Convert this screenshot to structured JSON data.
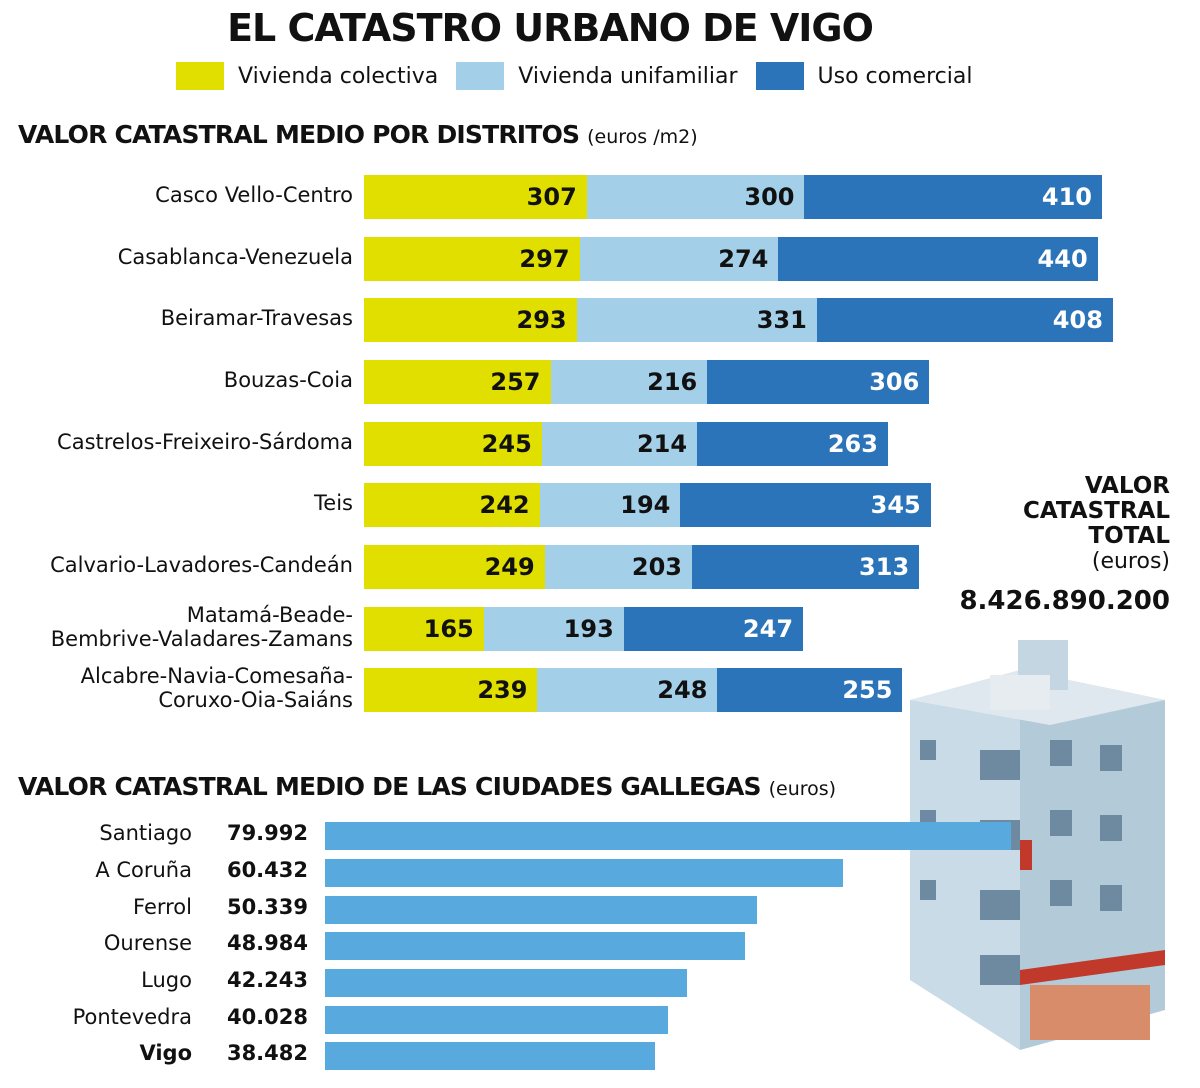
{
  "title": "EL CATASTRO URBANO DE VIGO",
  "colors": {
    "colectiva": "#e0df00",
    "unifamiliar": "#a4cfe8",
    "comercial": "#2b74ba",
    "cities": "#58aade"
  },
  "chart_data": [
    {
      "type": "bar",
      "orientation": "horizontal",
      "stacked": true,
      "title": "VALOR CATASTRAL MEDIO POR DISTRITOS",
      "unit": "(euros /m2)",
      "legend": "top",
      "categories": [
        "Casco Vello-Centro",
        "Casablanca-Venezuela",
        "Beiramar-Travesas",
        "Bouzas-Coia",
        "Castrelos-Freixeiro-Sárdoma",
        "Teis",
        "Calvario-Lavadores-Candeán",
        "Matamá-Beade-\nBembrive-Valadares-Zamans",
        "Alcabre-Navia-Comesaña-\nCoruxo-Oia-Saiáns"
      ],
      "series": [
        {
          "name": "Vivienda colectiva",
          "values": [
            307,
            297,
            293,
            257,
            245,
            242,
            249,
            165,
            239
          ]
        },
        {
          "name": "Vivienda unifamiliar",
          "values": [
            300,
            274,
            331,
            216,
            214,
            194,
            203,
            193,
            248
          ]
        },
        {
          "name": "Uso comercial",
          "values": [
            410,
            440,
            408,
            306,
            263,
            345,
            313,
            247,
            255
          ]
        }
      ]
    },
    {
      "type": "bar",
      "orientation": "horizontal",
      "title": "VALOR CATASTRAL MEDIO DE LAS CIUDADES GALLEGAS",
      "unit": "(euros)",
      "categories": [
        "Santiago",
        "A Coruña",
        "Ferrol",
        "Ourense",
        "Lugo",
        "Pontevedra",
        "Vigo"
      ],
      "values": [
        79992,
        60432,
        50339,
        48984,
        42243,
        40028,
        38482
      ],
      "labels": [
        "79.992",
        "60.432",
        "50.339",
        "48.984",
        "42.243",
        "40.028",
        "38.482"
      ],
      "highlight": "Vigo"
    }
  ],
  "total": {
    "line1": "VALOR",
    "line2": "CATASTRAL",
    "line3": "TOTAL",
    "unit": "(euros)",
    "value": "8.426.890.200"
  }
}
